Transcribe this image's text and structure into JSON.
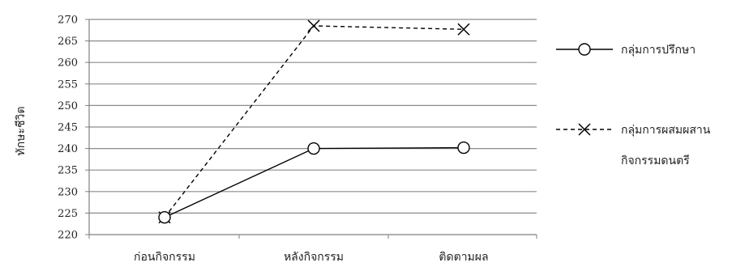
{
  "chart_data": {
    "type": "line",
    "title": "",
    "xlabel": "",
    "ylabel": "ทักษะชีวิต",
    "ylim": [
      220,
      270
    ],
    "ytick_step": 5,
    "yticks": [
      "220",
      "225",
      "230",
      "235",
      "240",
      "245",
      "250",
      "255",
      "260",
      "265",
      "270"
    ],
    "grid": true,
    "legend_position": "right",
    "categories": [
      "ก่อนกิจกรรม",
      "หลังกิจกรรม",
      "ติดตามผล"
    ],
    "series": [
      {
        "name": "กลุ่มการปรึกษา",
        "values": [
          224,
          240,
          240.2
        ],
        "marker": "circle",
        "line_style": "solid",
        "color": "#000000"
      },
      {
        "name": "กลุ่มการผสมผสานกิจกรรมดนตรี",
        "name_lines": [
          "กลุ่มการผสมผสาน",
          "กิจกรรมดนตรี"
        ],
        "values": [
          224,
          268.5,
          267.7
        ],
        "marker": "x",
        "line_style": "dashed",
        "color": "#000000"
      }
    ]
  }
}
